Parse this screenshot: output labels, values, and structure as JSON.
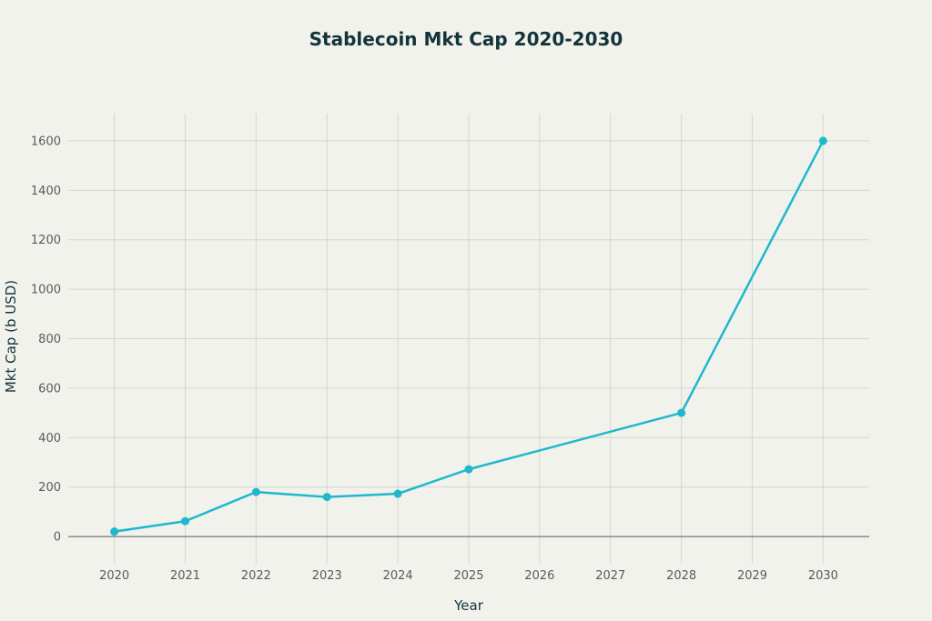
{
  "chart_data": {
    "type": "line",
    "title": "Stablecoin Mkt Cap 2020-2030",
    "xlabel": "Year",
    "ylabel": "Mkt Cap (b USD)",
    "x": [
      2020,
      2021,
      2022,
      2023,
      2024,
      2025,
      2028,
      2030
    ],
    "series": [
      {
        "values": [
          20,
          62,
          180,
          160,
          173,
          272,
          500,
          1600
        ]
      }
    ],
    "x_ticks": [
      "2020",
      "2021",
      "2022",
      "2023",
      "2024",
      "2025",
      "2026",
      "2027",
      "2028",
      "2029",
      "2030"
    ],
    "y_ticks": [
      "0",
      "200",
      "400",
      "600",
      "800",
      "1000",
      "1200",
      "1400",
      "1600"
    ],
    "xlim": [
      2019.35,
      2030.65
    ],
    "ylim": [
      -110,
      1710
    ],
    "grid": true,
    "line_color": "#1fb8cd",
    "text_color": "#13343b"
  }
}
